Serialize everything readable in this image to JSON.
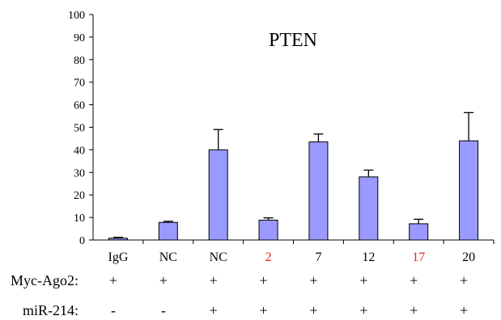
{
  "chart_data": {
    "type": "bar",
    "title": "PTEN",
    "xlabel": "",
    "ylabel": "",
    "ylim": [
      0,
      100
    ],
    "yticks": [
      0,
      10,
      20,
      30,
      40,
      50,
      60,
      70,
      80,
      90,
      100
    ],
    "categories": [
      "IgG",
      "NC",
      "NC",
      "2",
      "7",
      "12",
      "17",
      "20"
    ],
    "category_colors": [
      "#000000",
      "#000000",
      "#000000",
      "#e8231e",
      "#000000",
      "#000000",
      "#e8231e",
      "#000000"
    ],
    "values": [
      0.8,
      7.8,
      40,
      8.8,
      43.5,
      28,
      7.2,
      44
    ],
    "error_upper": [
      1.2,
      8.3,
      49,
      9.8,
      47,
      31,
      9.2,
      56.5
    ],
    "bar_color": "#9999ff",
    "grid": false,
    "legend": "none"
  },
  "conditions": [
    {
      "label": "Myc-Ago2:",
      "marks": [
        "+",
        "+",
        "+",
        "+",
        "+",
        "+",
        "+",
        "+"
      ]
    },
    {
      "label": "miR-214:",
      "marks": [
        "-",
        "-",
        "+",
        "+",
        "+",
        "+",
        "+",
        "+"
      ]
    }
  ]
}
